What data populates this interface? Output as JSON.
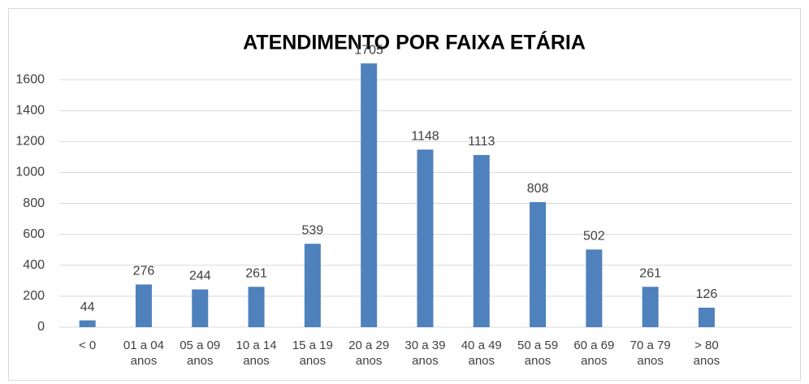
{
  "chart_data": {
    "type": "bar",
    "title": "ATENDIMENTO POR FAIXA ETÁRIA",
    "categories": [
      "< 0",
      "01 a 04 anos",
      "05 a 09 anos",
      "10 a 14 anos",
      "15 a 19 anos",
      "20 a 29 anos",
      "30 a 39 anos",
      "40 a 49 anos",
      "50 a 59 anos",
      "60 a 69 anos",
      "70 a 79 anos",
      "> 80 anos"
    ],
    "values": [
      44,
      276,
      244,
      261,
      539,
      1705,
      1148,
      1113,
      808,
      502,
      261,
      126
    ],
    "color": "#4f81bd",
    "ylim": [
      0,
      1800
    ],
    "yticks": [
      0,
      200,
      400,
      600,
      800,
      1000,
      1200,
      1400,
      1600
    ],
    "grid": true
  }
}
